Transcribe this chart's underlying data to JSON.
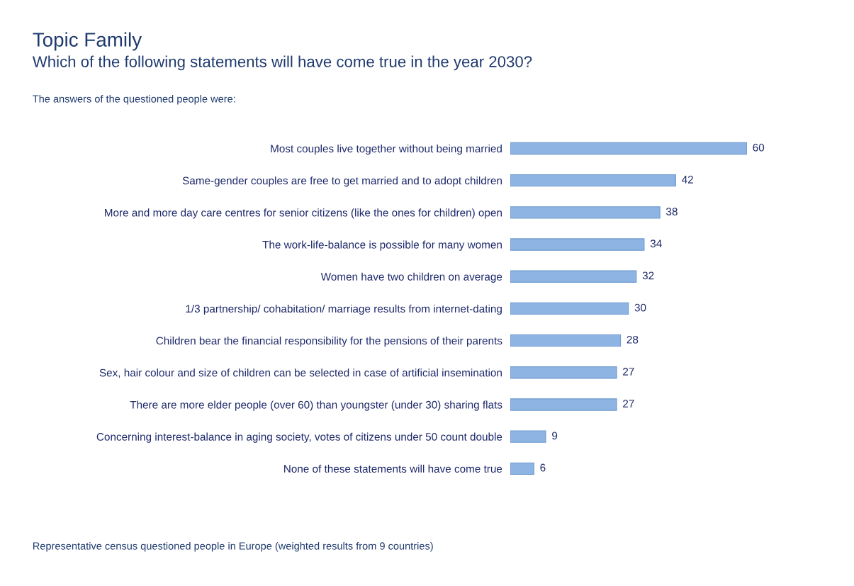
{
  "chart_data": {
    "type": "bar",
    "orientation": "horizontal",
    "title": "Topic Family",
    "subtitle": "Which of the following statements will have come true in the year 2030?",
    "categories": [
      "Most couples live together without being married",
      "Same-gender couples are free to get married and to adopt children",
      "More and more day care centres for senior citizens (like the ones for children) open",
      "The work-life-balance is possible for many women",
      "Women have two children on average",
      "1/3 partnership/ cohabitation/ marriage results from internet-dating",
      "Children bear the financial responsibility for the pensions of their parents",
      "Sex, hair colour and size of children can be selected in case of artificial insemination",
      "There are more elder people (over 60) than youngster (under 30) sharing flats",
      "Concerning interest-balance in aging society, votes of citizens under 50 count double",
      "None of these statements will have come true"
    ],
    "values": [
      60,
      42,
      38,
      34,
      32,
      30,
      28,
      27,
      27,
      9,
      6
    ],
    "color": "#8db4e2",
    "data_labels": true,
    "grid": false,
    "legend": false,
    "annotations": [
      "The answers of the questioned people were:",
      "Representative census questioned people in Europe (weighted results from 9 countries)"
    ]
  }
}
